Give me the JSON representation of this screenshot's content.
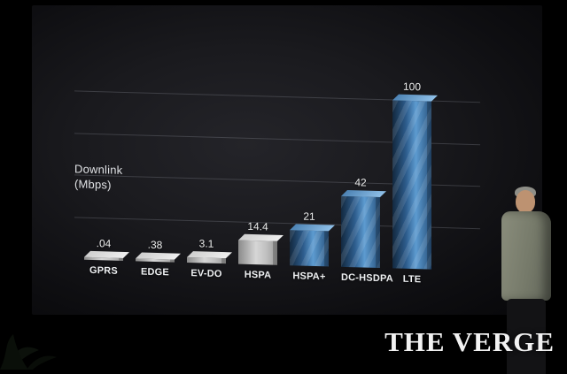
{
  "chart_data": {
    "type": "bar",
    "title": "",
    "ylabel": "Downlink (Mbps)",
    "categories": [
      "GPRS",
      "EDGE",
      "EV-DO",
      "HSPA",
      "HSPA+",
      "DC-HSDPA",
      "LTE"
    ],
    "values": [
      0.04,
      0.38,
      3.1,
      14.4,
      21,
      42,
      100
    ],
    "value_labels": [
      ".04",
      ".38",
      "3.1",
      "14.4",
      "21",
      "42",
      "100"
    ],
    "unit": "Mbps",
    "ylim": [
      0,
      100
    ],
    "gridline_values": [
      25,
      50,
      75,
      100
    ],
    "grid": true,
    "legend": false,
    "bar_styles": [
      "silver",
      "silver",
      "silver",
      "silver",
      "blue",
      "blue",
      "blue"
    ],
    "colors": {
      "silver_bar_light": "#d6d6d6",
      "silver_bar_dark": "#8a8a8a",
      "silver_bar_top": "#efefef",
      "blue_bar_light": "#5d9bd0",
      "blue_bar_dark": "#13293f",
      "blue_bar_top": "#8fc0e8",
      "label_text": "#eceded",
      "gridline": "rgba(150,155,165,0.28)",
      "slide_background": "#1a1a1e"
    }
  },
  "axis_label": {
    "line1": "Downlink",
    "line2": "(Mbps)"
  },
  "watermark": {
    "text": "THE VERGE"
  },
  "scene": {
    "presenter": "speaker standing at stage right",
    "decor": "plant silhouette at bottom left"
  }
}
